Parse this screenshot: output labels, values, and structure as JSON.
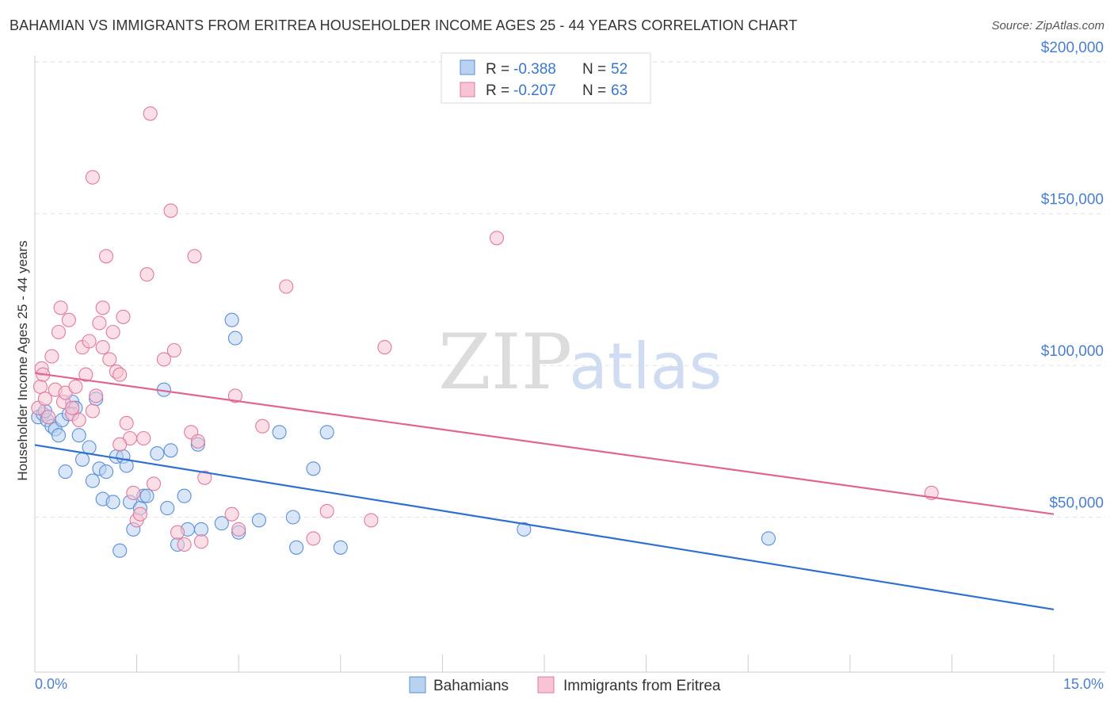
{
  "title": "BAHAMIAN VS IMMIGRANTS FROM ERITREA HOUSEHOLDER INCOME AGES 25 - 44 YEARS CORRELATION CHART",
  "source": "Source: ZipAtlas.com",
  "watermark": {
    "zip": "ZIP",
    "atlas": "atlas"
  },
  "legend_top": [
    {
      "r_label": "R = ",
      "r_value": "-0.388",
      "n_label": "N = ",
      "n_value": "52"
    },
    {
      "r_label": "R = ",
      "r_value": "-0.207",
      "n_label": "N = ",
      "n_value": "63"
    }
  ],
  "chart_data": {
    "type": "scatter",
    "ylabel": "Householder Income Ages 25 - 44 years",
    "xlim": [
      0,
      15
    ],
    "ylim": [
      0,
      210000
    ],
    "x_tick_labels": [
      "0.0%",
      "15.0%"
    ],
    "y_ticks": [
      50000,
      100000,
      150000,
      200000
    ],
    "y_tick_labels": [
      "$50,000",
      "$100,000",
      "$150,000",
      "$200,000"
    ],
    "grid": true,
    "legend_position": "bottom-center",
    "series": [
      {
        "name": "Bahamians",
        "color": "#5b8fd6",
        "fill": "#b9d2f2",
        "trend": {
          "x": [
            0,
            15
          ],
          "y": [
            73800,
            19600
          ]
        },
        "points": [
          [
            0.05,
            83000
          ],
          [
            0.12,
            84000
          ],
          [
            0.18,
            82000
          ],
          [
            0.25,
            80000
          ],
          [
            0.3,
            79000
          ],
          [
            0.35,
            77000
          ],
          [
            0.4,
            82000
          ],
          [
            0.45,
            65000
          ],
          [
            0.55,
            88000
          ],
          [
            0.6,
            86000
          ],
          [
            0.65,
            77000
          ],
          [
            0.7,
            69000
          ],
          [
            0.8,
            73000
          ],
          [
            0.85,
            62000
          ],
          [
            0.9,
            89000
          ],
          [
            0.95,
            66000
          ],
          [
            1.0,
            56000
          ],
          [
            1.05,
            65000
          ],
          [
            1.15,
            55000
          ],
          [
            1.2,
            70000
          ],
          [
            1.25,
            39000
          ],
          [
            1.3,
            70000
          ],
          [
            1.35,
            67000
          ],
          [
            1.4,
            55000
          ],
          [
            1.45,
            46000
          ],
          [
            1.55,
            53000
          ],
          [
            1.6,
            57000
          ],
          [
            1.65,
            57000
          ],
          [
            1.8,
            71000
          ],
          [
            1.9,
            92000
          ],
          [
            1.95,
            53000
          ],
          [
            2.0,
            72000
          ],
          [
            2.1,
            41000
          ],
          [
            2.2,
            57000
          ],
          [
            2.25,
            46000
          ],
          [
            2.4,
            74000
          ],
          [
            2.45,
            46000
          ],
          [
            2.75,
            48000
          ],
          [
            2.9,
            115000
          ],
          [
            2.95,
            109000
          ],
          [
            3.0,
            45000
          ],
          [
            3.3,
            49000
          ],
          [
            3.6,
            78000
          ],
          [
            3.8,
            50000
          ],
          [
            3.85,
            40000
          ],
          [
            4.1,
            66000
          ],
          [
            4.3,
            78000
          ],
          [
            4.5,
            40000
          ],
          [
            7.2,
            46000
          ],
          [
            10.8,
            43000
          ],
          [
            0.15,
            85000
          ],
          [
            0.5,
            84000
          ]
        ]
      },
      {
        "name": "Immigrants from Eritrea",
        "color": "#e07a9d",
        "fill": "#f7c4d4",
        "trend": {
          "x": [
            0,
            15
          ],
          "y": [
            97500,
            51000
          ]
        },
        "points": [
          [
            0.05,
            86000
          ],
          [
            0.08,
            93000
          ],
          [
            0.1,
            99000
          ],
          [
            0.15,
            89000
          ],
          [
            0.2,
            83000
          ],
          [
            0.25,
            103000
          ],
          [
            0.3,
            92000
          ],
          [
            0.35,
            111000
          ],
          [
            0.38,
            119000
          ],
          [
            0.42,
            88000
          ],
          [
            0.45,
            91000
          ],
          [
            0.5,
            115000
          ],
          [
            0.55,
            84000
          ],
          [
            0.6,
            93000
          ],
          [
            0.65,
            82000
          ],
          [
            0.7,
            106000
          ],
          [
            0.75,
            97000
          ],
          [
            0.8,
            108000
          ],
          [
            0.85,
            162000
          ],
          [
            0.9,
            90000
          ],
          [
            0.95,
            114000
          ],
          [
            1.0,
            119000
          ],
          [
            1.0,
            106000
          ],
          [
            1.05,
            136000
          ],
          [
            1.1,
            102000
          ],
          [
            1.15,
            111000
          ],
          [
            1.2,
            98000
          ],
          [
            1.25,
            97000
          ],
          [
            1.3,
            116000
          ],
          [
            1.35,
            81000
          ],
          [
            1.4,
            76000
          ],
          [
            1.45,
            58000
          ],
          [
            1.5,
            49000
          ],
          [
            1.55,
            51000
          ],
          [
            1.6,
            76000
          ],
          [
            1.65,
            130000
          ],
          [
            1.7,
            183000
          ],
          [
            1.75,
            61000
          ],
          [
            1.9,
            102000
          ],
          [
            2.0,
            151000
          ],
          [
            2.05,
            105000
          ],
          [
            2.1,
            45000
          ],
          [
            2.2,
            41000
          ],
          [
            2.3,
            78000
          ],
          [
            2.35,
            136000
          ],
          [
            2.4,
            75000
          ],
          [
            2.45,
            42000
          ],
          [
            2.5,
            63000
          ],
          [
            2.9,
            51000
          ],
          [
            2.95,
            90000
          ],
          [
            3.0,
            46000
          ],
          [
            3.35,
            80000
          ],
          [
            3.7,
            126000
          ],
          [
            4.1,
            43000
          ],
          [
            4.3,
            52000
          ],
          [
            4.95,
            49000
          ],
          [
            5.15,
            106000
          ],
          [
            6.8,
            142000
          ],
          [
            13.2,
            58000
          ],
          [
            0.12,
            97000
          ],
          [
            0.85,
            85000
          ],
          [
            1.25,
            74000
          ],
          [
            0.55,
            86000
          ]
        ]
      }
    ]
  }
}
